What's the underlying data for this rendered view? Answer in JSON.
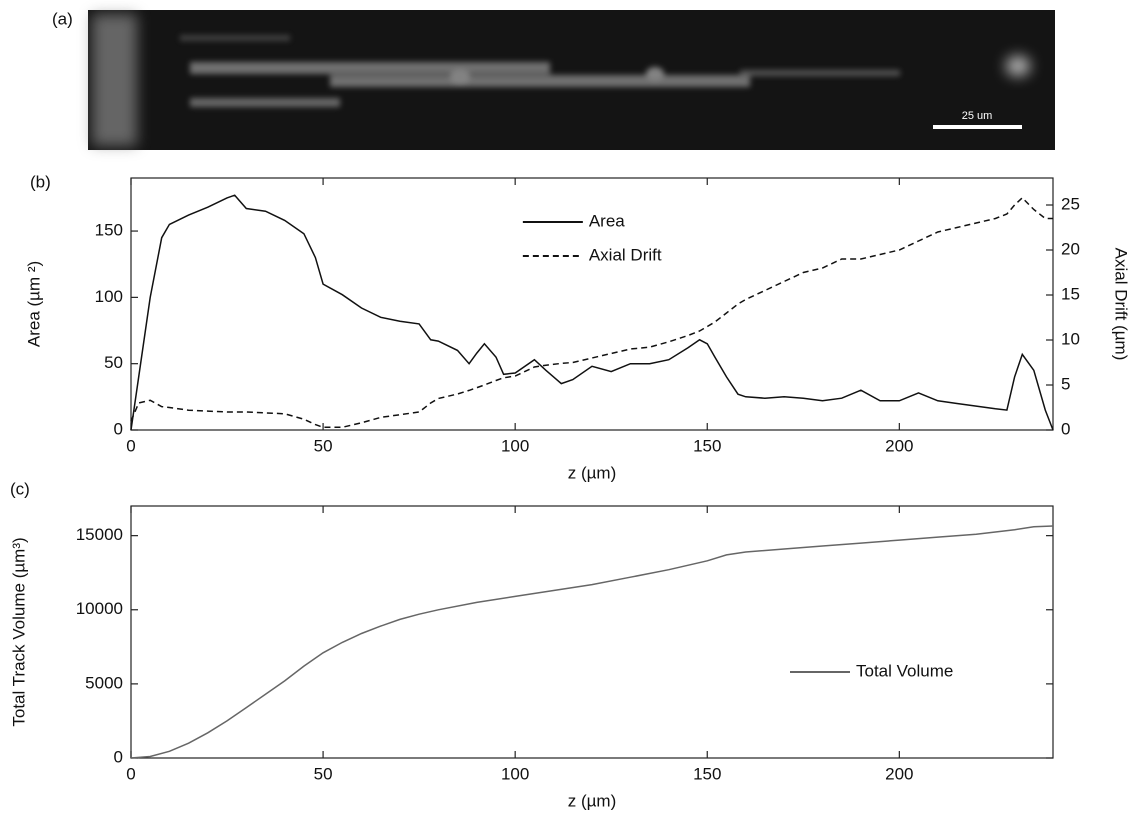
{
  "chart_data": [
    {
      "type": "image",
      "panel_label": "(a)",
      "scale_bar_label": "25 um"
    },
    {
      "type": "line",
      "panel_label": "(b)",
      "xlabel": "z (µm)",
      "ylabel": "Area (µm ²)",
      "y2label": "Axial Drift (µm)",
      "xlim": [
        0,
        240
      ],
      "xticks": [
        0,
        50,
        100,
        150,
        200
      ],
      "ylim": [
        0,
        190
      ],
      "yticks": [
        0,
        50,
        100,
        150
      ],
      "y2lim": [
        0,
        28
      ],
      "y2ticks": [
        0,
        5,
        10,
        15,
        20,
        25
      ],
      "legend": "upper center",
      "x": [
        0,
        2,
        5,
        8,
        10,
        15,
        20,
        25,
        27,
        30,
        35,
        40,
        45,
        48,
        50,
        55,
        60,
        65,
        70,
        75,
        78,
        80,
        85,
        88,
        90,
        92,
        95,
        97,
        100,
        105,
        108,
        112,
        115,
        120,
        125,
        130,
        135,
        140,
        145,
        148,
        150,
        152,
        155,
        158,
        160,
        165,
        170,
        175,
        180,
        185,
        190,
        195,
        200,
        205,
        210,
        215,
        220,
        225,
        228,
        230,
        232,
        235,
        238,
        240
      ],
      "series": [
        {
          "name": "Area",
          "color": "#111111",
          "dash": "solid",
          "values": [
            0,
            40,
            100,
            145,
            155,
            162,
            168,
            175,
            177,
            167,
            165,
            158,
            148,
            130,
            110,
            102,
            92,
            85,
            82,
            80,
            68,
            67,
            60,
            50,
            58,
            65,
            55,
            42,
            43,
            53,
            45,
            35,
            38,
            48,
            44,
            50,
            50,
            53,
            62,
            68,
            65,
            55,
            40,
            27,
            25,
            24,
            25,
            24,
            22,
            24,
            30,
            22,
            22,
            28,
            22,
            20,
            18,
            16,
            15,
            40,
            57,
            45,
            15,
            0
          ]
        },
        {
          "name": "Axial Drift",
          "color": "#111111",
          "dash": "dashed",
          "axis": "y2",
          "values": [
            1,
            3,
            3.3,
            2.6,
            2.5,
            2.2,
            2.1,
            2,
            2,
            2,
            1.9,
            1.8,
            1.2,
            0.6,
            0.3,
            0.3,
            0.8,
            1.4,
            1.7,
            2,
            3,
            3.5,
            4,
            4.4,
            4.7,
            5,
            5.5,
            5.8,
            6,
            7,
            7.2,
            7.4,
            7.5,
            8,
            8.5,
            9,
            9.2,
            9.8,
            10.5,
            11,
            11.5,
            12,
            13,
            14,
            14.5,
            15.5,
            16.5,
            17.5,
            18,
            19,
            19,
            19.5,
            20,
            21,
            22,
            22.5,
            23,
            23.5,
            24,
            25,
            25.8,
            24.5,
            23.5,
            23.5
          ]
        }
      ]
    },
    {
      "type": "line",
      "panel_label": "(c)",
      "xlabel": "z (µm)",
      "ylabel": "Total Track Volume (µm³)",
      "xlim": [
        0,
        240
      ],
      "xticks": [
        0,
        50,
        100,
        150,
        200
      ],
      "ylim": [
        0,
        17000
      ],
      "yticks": [
        0,
        5000,
        10000,
        15000
      ],
      "legend": "lower right",
      "x": [
        0,
        5,
        10,
        15,
        20,
        25,
        30,
        35,
        40,
        45,
        50,
        55,
        60,
        65,
        70,
        75,
        80,
        90,
        100,
        110,
        120,
        130,
        140,
        150,
        155,
        160,
        170,
        180,
        190,
        200,
        210,
        220,
        230,
        235,
        240
      ],
      "series": [
        {
          "name": "Total Volume",
          "color": "#666666",
          "dash": "solid",
          "values": [
            0,
            100,
            450,
            1000,
            1700,
            2500,
            3400,
            4300,
            5200,
            6200,
            7100,
            7800,
            8400,
            8900,
            9350,
            9700,
            10000,
            10500,
            10900,
            11300,
            11700,
            12200,
            12700,
            13300,
            13700,
            13900,
            14100,
            14300,
            14500,
            14700,
            14900,
            15100,
            15400,
            15600,
            15650
          ]
        }
      ]
    }
  ]
}
